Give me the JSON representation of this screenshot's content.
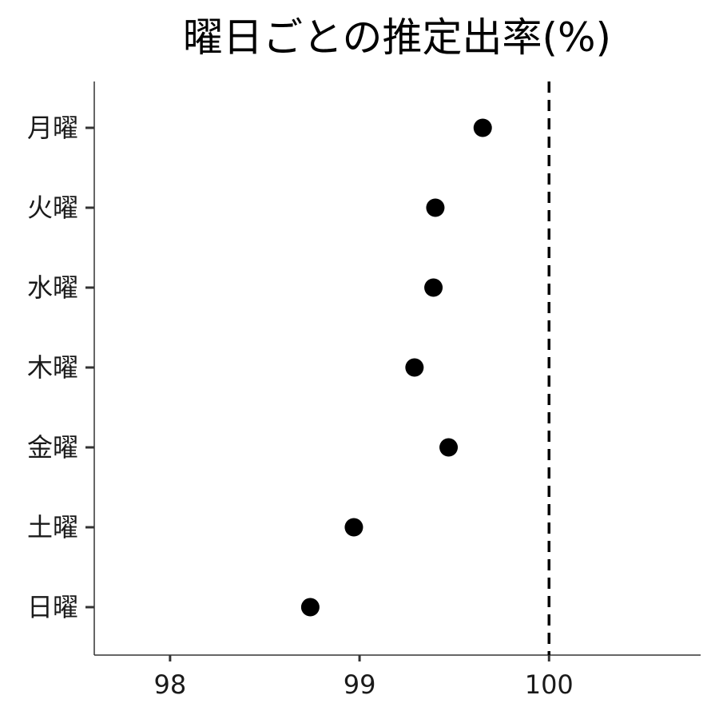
{
  "chart_data": {
    "type": "scatter",
    "title": "曜日ごとの推定出率(%)",
    "xlabel": "",
    "ylabel": "",
    "categories": [
      "月曜",
      "火曜",
      "水曜",
      "木曜",
      "金曜",
      "土曜",
      "日曜"
    ],
    "values": [
      99.65,
      99.4,
      99.39,
      99.29,
      99.47,
      98.97,
      98.74
    ],
    "xlim": [
      97.6,
      100.8
    ],
    "xticks": [
      98,
      99,
      100
    ],
    "xtick_labels": [
      "98",
      "99",
      "100"
    ],
    "reference_line": {
      "x": 100,
      "style": "dashed"
    },
    "grid": false,
    "legend": "none",
    "point_color": "#000000"
  }
}
